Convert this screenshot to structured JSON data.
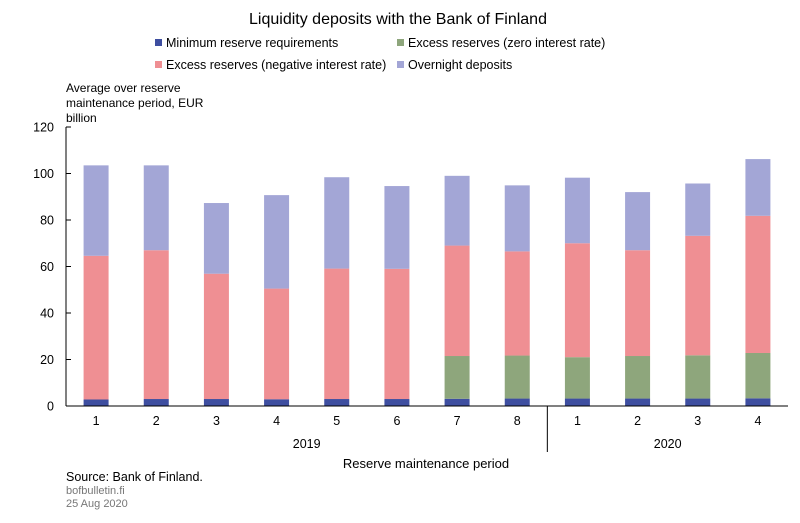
{
  "chart_data": {
    "type": "bar",
    "stacked": true,
    "title": "Liquidity deposits with the Bank of Finland",
    "ylabel": "Average over reserve maintenance period, EUR billion",
    "ylabel_lines": [
      "Average over reserve",
      "maintenance period, EUR",
      "billion"
    ],
    "xlabel": "Reserve maintenance period",
    "ylim": [
      0,
      120
    ],
    "yticks": [
      0,
      20,
      40,
      60,
      80,
      100,
      120
    ],
    "categories": [
      "1",
      "2",
      "3",
      "4",
      "5",
      "6",
      "7",
      "8",
      "1",
      "2",
      "3",
      "4"
    ],
    "groups": [
      {
        "label": "2019",
        "count": 8
      },
      {
        "label": "2020",
        "count": 4
      }
    ],
    "series": [
      {
        "name": "Minimum reserve requirements",
        "color": "#3e4ea0",
        "values": [
          2.8,
          3.0,
          3.0,
          2.9,
          3.0,
          3.0,
          3.1,
          3.2,
          3.2,
          3.2,
          3.2,
          3.3
        ]
      },
      {
        "name": "Excess reserves (zero interest rate)",
        "color": "#8ea67c",
        "values": [
          0,
          0,
          0,
          0,
          0,
          0,
          18.4,
          18.5,
          17.8,
          18.3,
          18.6,
          19.5
        ]
      },
      {
        "name": "Excess reserves (negative interest rate)",
        "color": "#ef8f93",
        "values": [
          61.8,
          64.0,
          53.9,
          47.6,
          56.1,
          56.0,
          47.5,
          44.8,
          49.0,
          45.5,
          51.4,
          59.0
        ]
      },
      {
        "name": "Overnight deposits",
        "color": "#a3a6d6",
        "values": [
          38.9,
          36.5,
          30.4,
          40.2,
          39.3,
          35.6,
          30.0,
          28.4,
          28.2,
          25.0,
          22.5,
          24.4
        ]
      }
    ],
    "legend_position": "top"
  },
  "footer": {
    "source": "Source: Bank of Finland.",
    "site": "bofbulletin.fi",
    "date": "25 Aug 2020"
  }
}
